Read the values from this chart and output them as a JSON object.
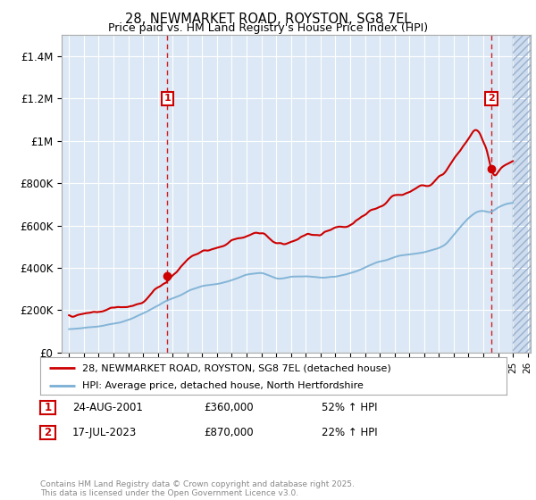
{
  "title": "28, NEWMARKET ROAD, ROYSTON, SG8 7EL",
  "subtitle": "Price paid vs. HM Land Registry's House Price Index (HPI)",
  "plot_bg_color": "#dce8f5",
  "ylabel_vals": [
    "£0",
    "£200K",
    "£400K",
    "£600K",
    "£800K",
    "£1M",
    "£1.2M",
    "£1.4M"
  ],
  "ylim": [
    0,
    1500000
  ],
  "yticks": [
    0,
    200000,
    400000,
    600000,
    800000,
    1000000,
    1200000,
    1400000
  ],
  "xmin": 1994.5,
  "xmax": 2026.2,
  "purchase1_x": 2001.64,
  "purchase1_y": 360000,
  "purchase2_x": 2023.54,
  "purchase2_y": 870000,
  "legend_line1": "28, NEWMARKET ROAD, ROYSTON, SG8 7EL (detached house)",
  "legend_line2": "HPI: Average price, detached house, North Hertfordshire",
  "table_row1": [
    "1",
    "24-AUG-2001",
    "£360,000",
    "52% ↑ HPI"
  ],
  "table_row2": [
    "2",
    "17-JUL-2023",
    "£870,000",
    "22% ↑ HPI"
  ],
  "footer": "Contains HM Land Registry data © Crown copyright and database right 2025.\nThis data is licensed under the Open Government Licence v3.0.",
  "price_line_color": "#cc0000",
  "hpi_line_color": "#7aafd4",
  "vline_color": "#cc0000",
  "grid_color": "#ffffff",
  "border_color": "#aaaaaa"
}
